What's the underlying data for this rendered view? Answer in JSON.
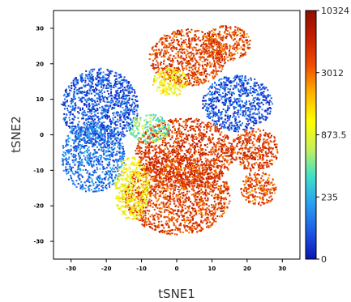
{
  "chart_data": {
    "type": "scatter",
    "title": "",
    "xlabel": "tSNE1",
    "ylabel": "tSNE2",
    "xlim": [
      -35,
      35
    ],
    "ylim": [
      -35,
      35
    ],
    "x_ticks": [
      -30,
      -20,
      -10,
      0,
      10,
      20,
      30
    ],
    "y_ticks": [
      30,
      20,
      10,
      0,
      -10,
      -20,
      -30
    ],
    "x_tick_labels": [
      "-30",
      "-20",
      "-10",
      "0",
      "10",
      "20",
      "30"
    ],
    "y_tick_labels": [
      "30",
      "20",
      "10",
      "0",
      "-10",
      "-20",
      "-30"
    ],
    "grid": false,
    "colorbar": {
      "scale": "arcsinh-like (nonlinear)",
      "tick_labels": [
        "10324",
        "3012",
        "873.5",
        "235",
        "0"
      ],
      "tick_values": [
        10324,
        3012,
        873.5,
        235,
        0
      ],
      "colors": [
        "#0a14b4",
        "#1e5ae6",
        "#28a0f0",
        "#40e0c8",
        "#c8f05a",
        "#ffff00",
        "#ffb400",
        "#f05000",
        "#c81e00",
        "#8c0f00"
      ]
    },
    "clusters": [
      {
        "name": "upper-right-red",
        "center": [
          3,
          22
        ],
        "color_level": "high"
      },
      {
        "name": "left-blue",
        "center": [
          -20,
          5
        ],
        "color_level": "low"
      },
      {
        "name": "right-blue",
        "center": [
          18,
          10
        ],
        "color_level": "low"
      },
      {
        "name": "bottom-red",
        "center": [
          2,
          -10
        ],
        "color_level": "high"
      },
      {
        "name": "right-small-red",
        "center": [
          23,
          -5
        ],
        "color_level": "high"
      }
    ]
  }
}
